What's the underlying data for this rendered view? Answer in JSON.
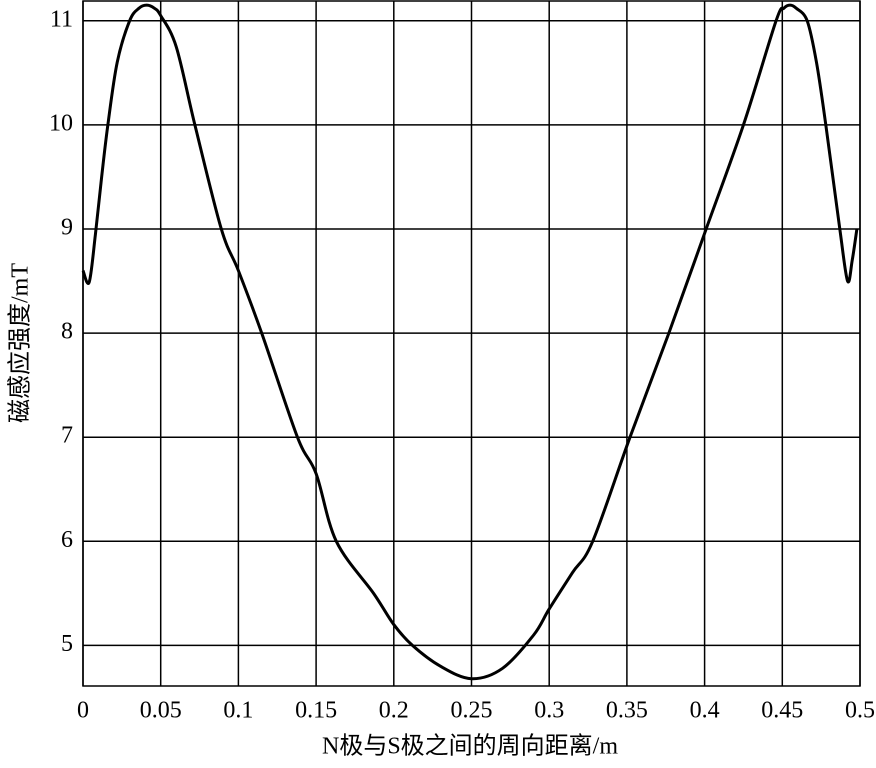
{
  "chart_data": {
    "type": "line",
    "xlabel": "N极与S极之间的周向距离/m",
    "ylabel": "磁感应强度/mT",
    "xlim": [
      0,
      0.5
    ],
    "ylim": [
      4.61,
      11.19
    ],
    "xticks": [
      0,
      0.05,
      0.1,
      0.15,
      0.2,
      0.25,
      0.3,
      0.35,
      0.4,
      0.45,
      0.5
    ],
    "yticks": [
      5,
      6,
      7,
      8,
      9,
      10,
      11
    ],
    "grid": true,
    "series": [
      {
        "color": "#000000",
        "x": [
          0,
          0.004,
          0.008,
          0.012,
          0.016,
          0.022,
          0.03,
          0.036,
          0.041,
          0.046,
          0.05,
          0.06,
          0.072,
          0.089,
          0.1,
          0.115,
          0.138,
          0.15,
          0.163,
          0.187,
          0.2,
          0.212,
          0.23,
          0.25,
          0.27,
          0.29,
          0.3,
          0.315,
          0.328,
          0.352,
          0.377,
          0.401,
          0.425,
          0.446,
          0.451,
          0.455,
          0.459,
          0.466,
          0.472,
          0.478,
          0.487,
          0.492,
          0.495,
          0.498
        ],
        "values": [
          8.6,
          8.49,
          8.95,
          9.5,
          10.0,
          10.6,
          11.0,
          11.12,
          11.15,
          11.12,
          11.05,
          10.75,
          10.0,
          9.0,
          8.6,
          8.0,
          7.0,
          6.65,
          6.0,
          5.5,
          5.2,
          5.0,
          4.8,
          4.68,
          4.78,
          5.1,
          5.35,
          5.7,
          6.0,
          7.0,
          8.0,
          9.0,
          10.0,
          11.0,
          11.12,
          11.15,
          11.12,
          11.0,
          10.6,
          10.0,
          9.0,
          8.5,
          8.7,
          9.0
        ]
      }
    ]
  }
}
